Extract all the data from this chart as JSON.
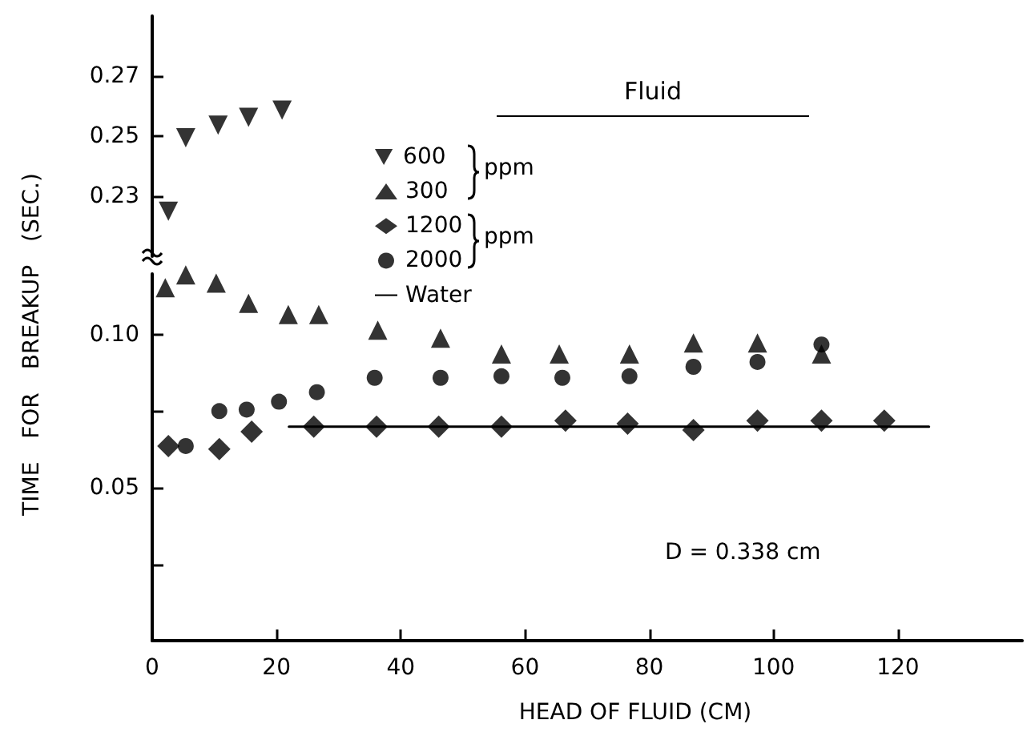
{
  "chart_data": [
    {
      "type": "scatter",
      "legend_title": "Fluid",
      "xlim": [
        0,
        40
      ],
      "xticks": [
        0,
        20,
        40
      ],
      "ylim": [
        0.21,
        0.29
      ],
      "yticks": [
        0.23,
        0.25,
        0.27
      ],
      "tick_labels": "y",
      "legend": "bottom right",
      "annotations": [
        "ppm",
        "ppm"
      ],
      "series": [
        {
          "name": "600",
          "color": "#000000",
          "marker": "triangle-down",
          "x": [
            2.6,
            5.4,
            10.6,
            15.5,
            20.9
          ],
          "values": [
            0.225,
            0.2495,
            0.2537,
            0.2563,
            0.2587
          ]
        }
      ]
    },
    {
      "type": "scatter",
      "xlabel": "HEAD OF FLUID (CM)",
      "ylabel": "TIME FOR BREAKUP (SEC.)",
      "xlim": [
        0,
        140
      ],
      "xticks": [
        0,
        20,
        40,
        60,
        80,
        100,
        120
      ],
      "ylim": [
        0,
        0.12
      ],
      "yticks": [
        {
          "value": 0.025,
          "label": null
        },
        0.05,
        {
          "value": 0.075,
          "label": null
        },
        {
          "value": 0.1,
          "label": "0.10"
        }
      ],
      "legend": "top left",
      "annotations": [
        "D = 0.338 cm"
      ],
      "series": [
        {
          "name": "300",
          "color": "#000000",
          "marker": "triangle",
          "x": [
            2.1,
            5.4,
            10.3,
            15.5,
            21.9,
            26.8,
            36.3,
            46.4,
            56.2,
            65.5,
            76.8,
            87.1,
            97.4,
            107.7
          ],
          "values": [
            0.1155,
            0.1197,
            0.117,
            0.1104,
            0.1067,
            0.1067,
            0.1016,
            0.099,
            0.0938,
            0.0938,
            0.0938,
            0.0974,
            0.0974,
            0.0938
          ]
        },
        {
          "name": "1200",
          "color": "#000000",
          "marker": "diamond",
          "x": [
            2.6,
            10.8,
            16,
            26,
            36.1,
            46.1,
            56.2,
            66.5,
            76.5,
            87.1,
            97.4,
            107.7,
            117.8
          ],
          "values": [
            0.0637,
            0.0627,
            0.0684,
            0.07,
            0.07,
            0.07,
            0.07,
            0.072,
            0.071,
            0.0689,
            0.072,
            0.072,
            0.072
          ]
        },
        {
          "name": "2000",
          "color": "#000000",
          "marker": "circle",
          "x": [
            5.4,
            10.8,
            15.2,
            20.4,
            26.5,
            35.8,
            46.4,
            56.2,
            66,
            76.8,
            87.1,
            97.4,
            107.7
          ],
          "values": [
            0.0637,
            0.0751,
            0.0756,
            0.0782,
            0.0813,
            0.086,
            0.086,
            0.0865,
            0.086,
            0.0865,
            0.0896,
            0.0912,
            0.0969
          ]
        },
        {
          "name": "Water",
          "type": "line",
          "color": "#000000",
          "marker": "none",
          "line_style": "solid",
          "x": [
            22,
            125
          ],
          "values": [
            0.07,
            0.07
          ]
        }
      ]
    }
  ]
}
